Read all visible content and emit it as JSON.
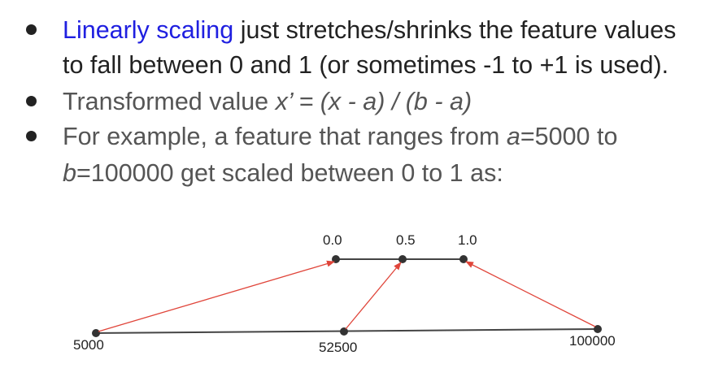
{
  "bullets": [
    {
      "line1": {
        "link": "Linearly scaling",
        "rest": " just stretches/shrinks the feature values"
      },
      "line2": "to fall between 0 and 1 (or sometimes -1 to +1 is used)."
    },
    {
      "prefix": "Transformed value ",
      "formula": "x’ = (x - a) / (b - a)"
    },
    {
      "line1": {
        "t1": "For example, a feature that ranges from ",
        "var_a": "a",
        "t2": "=5000 to"
      },
      "line2": {
        "var_b": "b",
        "t3": "=100000 get scaled between 0 to 1 as:"
      }
    }
  ],
  "diagram": {
    "scaled_ticks": [
      "0.0",
      "0.5",
      "1.0"
    ],
    "raw_ticks": [
      "5000",
      "52500",
      "100000"
    ],
    "colors": {
      "axis": "#444444",
      "arrow": "#e0453a",
      "point": "#333333"
    }
  }
}
